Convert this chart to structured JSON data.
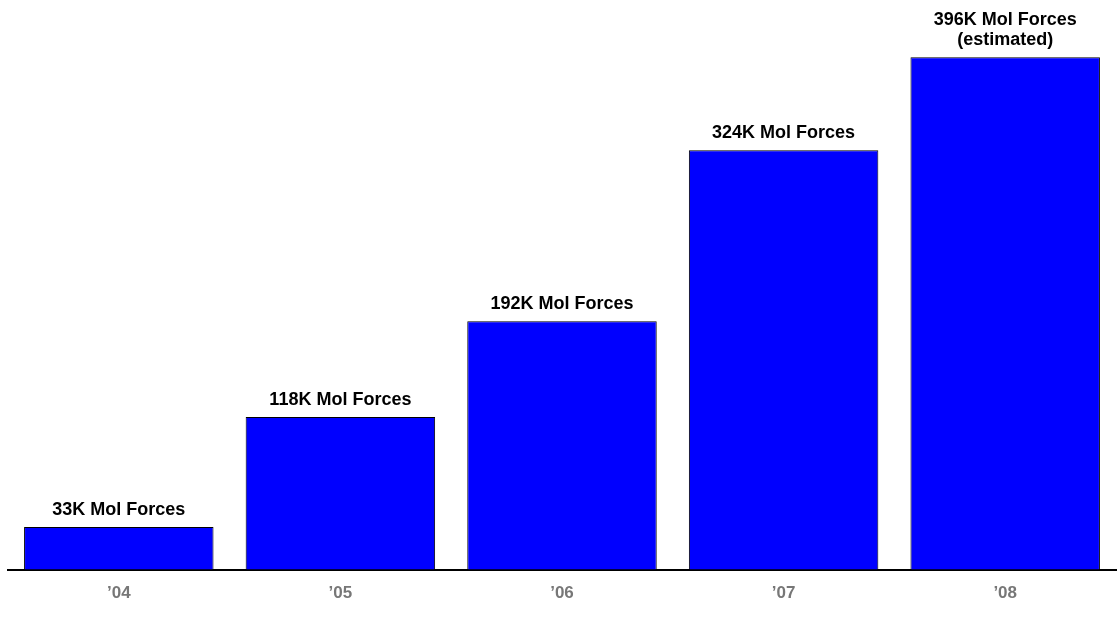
{
  "chart_data": {
    "type": "bar",
    "categories": [
      "’04",
      "’05",
      "’06",
      "’07",
      "’08"
    ],
    "values": [
      33,
      118,
      192,
      324,
      396
    ],
    "color": "#0000ff",
    "value_labels": [
      "33K Mol Forces",
      "118K Mol Forces",
      "192K Mol Forces",
      "324K Mol Forces",
      "396K Mol Forces\n(estimated)"
    ],
    "grid": false,
    "legend": false
  }
}
